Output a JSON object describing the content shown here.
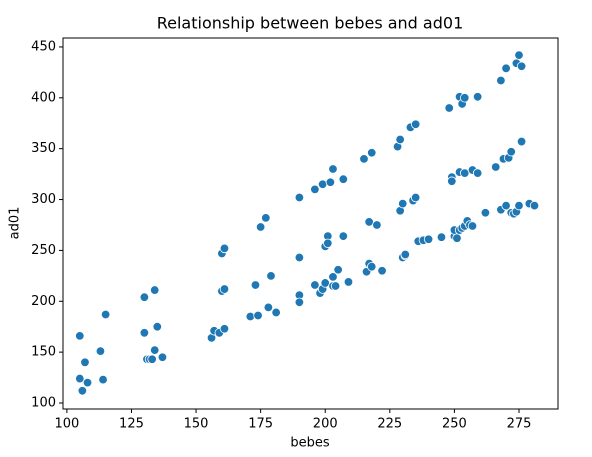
{
  "chart_data": {
    "type": "scatter",
    "title": "Relationship between bebes and ad01",
    "x_label": "bebes",
    "y_label": "ad01",
    "color": "#1f77b4",
    "x": [
      105,
      105,
      106,
      107,
      108,
      113,
      114,
      115,
      130,
      130,
      131,
      132,
      133,
      134,
      134,
      135,
      137,
      156,
      157,
      159,
      160,
      160,
      161,
      161,
      161,
      171,
      173,
      174,
      175,
      177,
      178,
      179,
      181,
      190,
      190,
      190,
      190,
      196,
      196,
      198,
      199,
      199,
      200,
      200,
      201,
      201,
      202,
      203,
      203,
      203,
      204,
      205,
      207,
      207,
      209,
      215,
      216,
      217,
      217,
      218,
      218,
      220,
      222,
      228,
      229,
      229,
      230,
      230,
      231,
      231,
      233,
      234,
      235,
      235,
      236,
      238,
      240,
      245,
      248,
      249,
      249,
      250,
      250,
      251,
      252,
      252,
      252,
      253,
      253,
      254,
      254,
      254,
      255,
      256,
      257,
      257,
      259,
      259,
      262,
      266,
      268,
      268,
      269,
      270,
      270,
      271,
      272,
      272,
      273,
      274,
      274,
      275,
      275,
      276,
      276,
      279,
      281
    ],
    "y": [
      166,
      124,
      112,
      140,
      120,
      151,
      123,
      187,
      204,
      169,
      143,
      143,
      143,
      211,
      152,
      175,
      145,
      164,
      171,
      169,
      247,
      210,
      212,
      173,
      252,
      185,
      216,
      186,
      273,
      282,
      194,
      225,
      189,
      302,
      243,
      206,
      199,
      310,
      216,
      208,
      212,
      315,
      254,
      218,
      264,
      257,
      317,
      330,
      215,
      224,
      215,
      231,
      320,
      264,
      219,
      340,
      229,
      278,
      237,
      346,
      234,
      275,
      230,
      352,
      289,
      359,
      243,
      296,
      245,
      246,
      371,
      299,
      374,
      302,
      259,
      260,
      261,
      263,
      390,
      322,
      318,
      264,
      270,
      262,
      401,
      327,
      270,
      394,
      272,
      400,
      326,
      274,
      279,
      275,
      329,
      274,
      401,
      326,
      287,
      332,
      417,
      290,
      340,
      429,
      294,
      341,
      347,
      287,
      286,
      434,
      288,
      294,
      442,
      431,
      357,
      296,
      294
    ],
    "xlim": [
      98.5,
      290.1
    ],
    "ylim": [
      94.1,
      458.8
    ],
    "xticks": [
      100,
      125,
      150,
      175,
      200,
      225,
      250,
      275
    ],
    "yticks": [
      100,
      150,
      200,
      250,
      300,
      350,
      400,
      450
    ]
  }
}
